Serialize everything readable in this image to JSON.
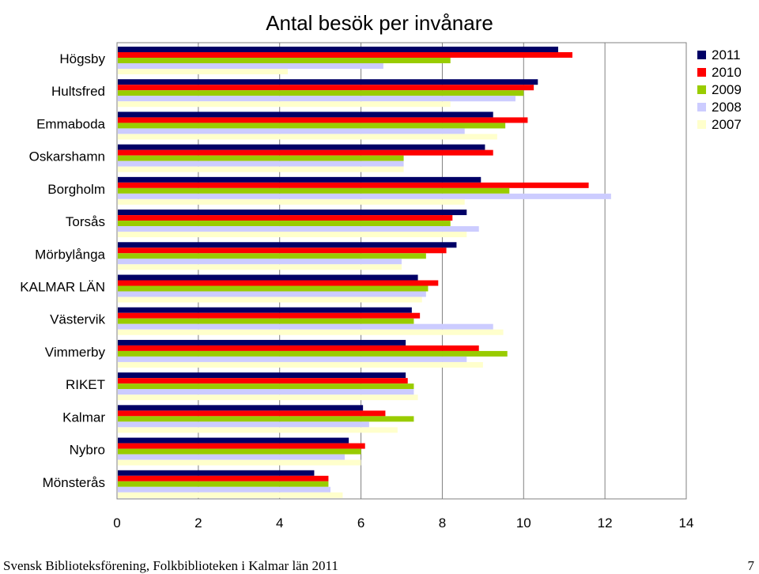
{
  "chart_data": {
    "type": "bar",
    "orientation": "horizontal",
    "title": "Antal besök per invånare",
    "categories": [
      "Högsby",
      "Hultsfred",
      "Emmaboda",
      "Oskarshamn",
      "Borgholm",
      "Torsås",
      "Mörbylånga",
      "KALMAR LÄN",
      "Västervik",
      "Vimmerby",
      "RIKET",
      "Kalmar",
      "Nybro",
      "Mönsterås"
    ],
    "series": [
      {
        "name": "2011",
        "color": "#000066",
        "values": [
          10.85,
          10.35,
          9.25,
          9.05,
          8.95,
          8.6,
          8.35,
          7.4,
          7.25,
          7.1,
          7.1,
          6.05,
          5.7,
          4.85
        ]
      },
      {
        "name": "2010",
        "color": "#ff0000",
        "values": [
          11.2,
          10.25,
          10.1,
          9.25,
          11.6,
          8.25,
          8.1,
          7.9,
          7.45,
          8.9,
          7.15,
          6.6,
          6.1,
          5.2
        ]
      },
      {
        "name": "2009",
        "color": "#99cc00",
        "values": [
          8.2,
          10.0,
          9.55,
          7.05,
          9.65,
          8.2,
          7.6,
          7.65,
          7.3,
          9.6,
          7.3,
          7.3,
          6.0,
          5.2
        ]
      },
      {
        "name": "2008",
        "color": "#ccccff",
        "values": [
          6.55,
          9.8,
          8.55,
          7.05,
          12.15,
          8.9,
          7.0,
          7.6,
          9.25,
          8.6,
          7.3,
          6.2,
          5.6,
          5.25
        ]
      },
      {
        "name": "2007",
        "color": "#ffffcc",
        "values": [
          4.2,
          8.2,
          9.35,
          7.05,
          8.55,
          8.6,
          7.0,
          7.5,
          9.5,
          9.0,
          7.4,
          6.9,
          6.0,
          5.55
        ]
      }
    ],
    "xlim": [
      0,
      14
    ],
    "xticks": [
      "0",
      "2",
      "4",
      "6",
      "8",
      "10",
      "12",
      "14"
    ],
    "grid": true,
    "legend_position": "right"
  },
  "footer": {
    "text": "Svensk Biblioteksförening, Folkbiblioteken i Kalmar län 2011",
    "page_number": "7"
  }
}
